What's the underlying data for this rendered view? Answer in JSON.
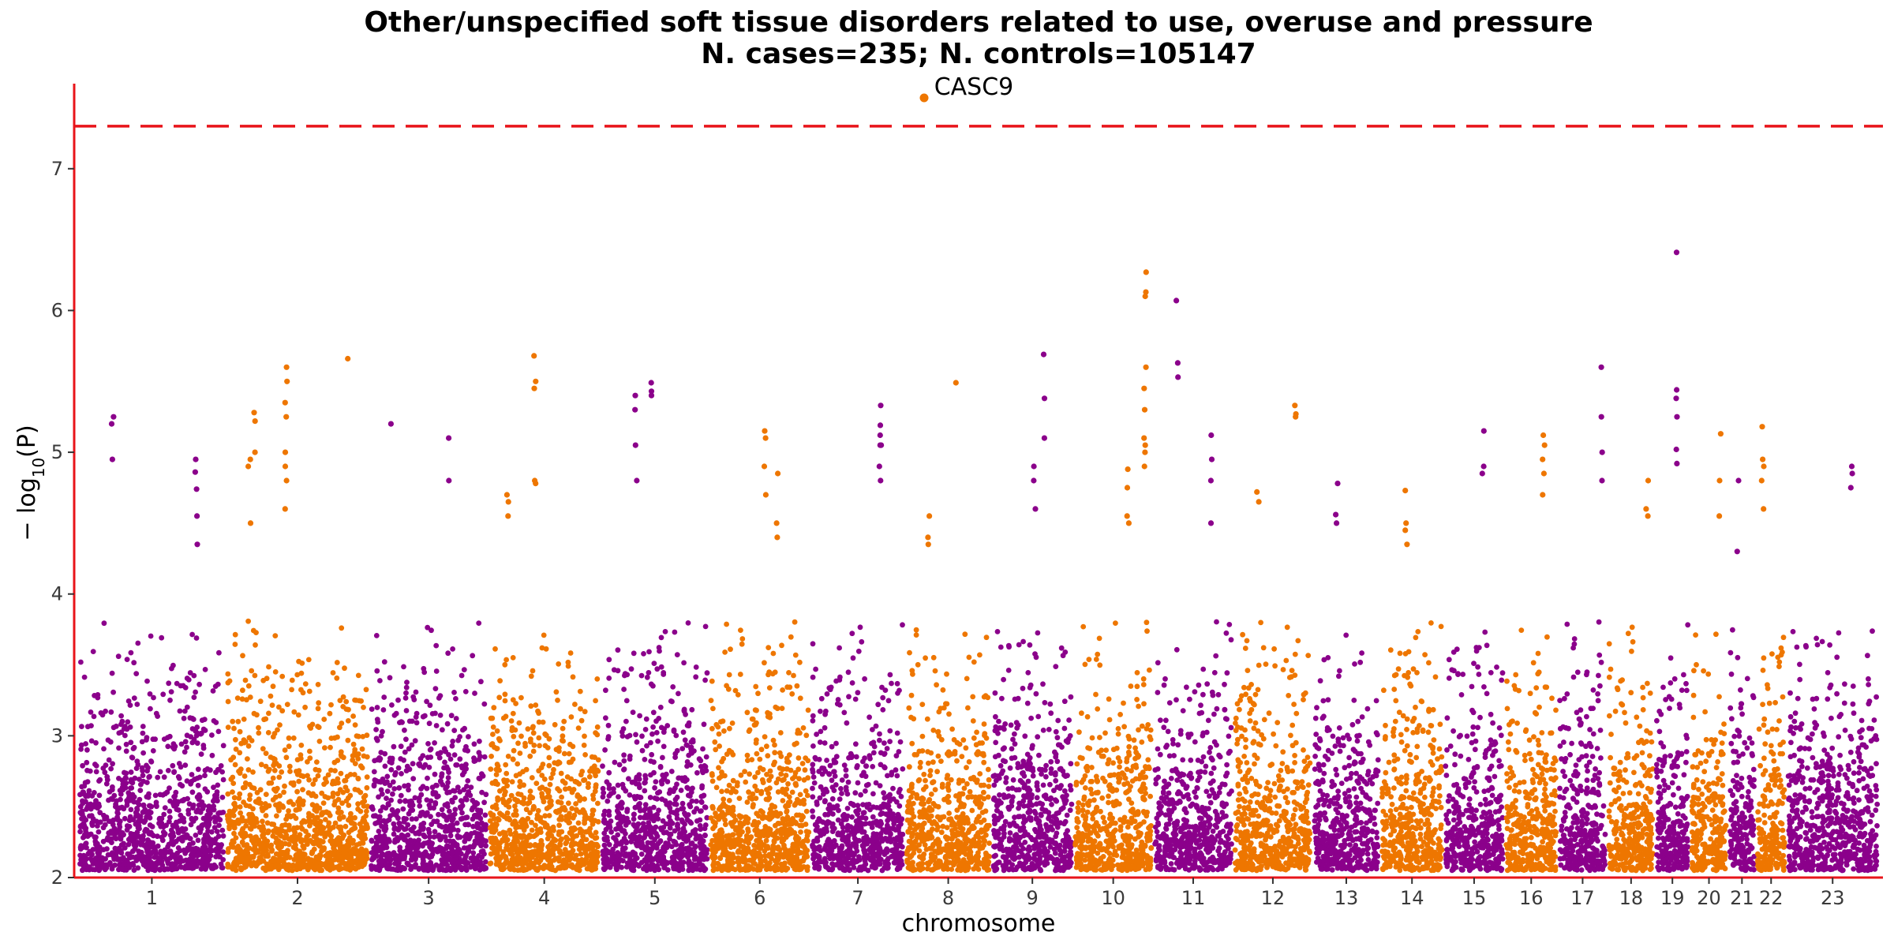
{
  "chart_data": {
    "type": "scatter",
    "subtype": "manhattan",
    "title": "Other/unspecified soft tissue disorders related to use, overuse and pressure",
    "subtitle": "N. cases=235; N. controls=105147",
    "xlabel": "chromosome",
    "ylabel_prefix": "− log",
    "ylabel_sub": "10",
    "ylabel_suffix": "(P)",
    "ylim": [
      2,
      7.6
    ],
    "yticks": [
      2,
      3,
      4,
      5,
      6,
      7
    ],
    "significance_line": 7.3,
    "grid": false,
    "colors": {
      "odd_chromosome": "#8B008B",
      "even_chromosome": "#EE7600",
      "axis": "#E8141A",
      "significance_line": "#E8141A"
    },
    "chromosomes": [
      {
        "label": "1",
        "start": 0,
        "end": 248
      },
      {
        "label": "2",
        "start": 248,
        "end": 490
      },
      {
        "label": "3",
        "start": 490,
        "end": 689
      },
      {
        "label": "4",
        "start": 689,
        "end": 879
      },
      {
        "label": "5",
        "start": 879,
        "end": 1061
      },
      {
        "label": "6",
        "start": 1061,
        "end": 1232
      },
      {
        "label": "7",
        "start": 1232,
        "end": 1391
      },
      {
        "label": "8",
        "start": 1391,
        "end": 1536
      },
      {
        "label": "9",
        "start": 1536,
        "end": 1674
      },
      {
        "label": "10",
        "start": 1674,
        "end": 1808
      },
      {
        "label": "11",
        "start": 1808,
        "end": 1943
      },
      {
        "label": "12",
        "start": 1943,
        "end": 2076
      },
      {
        "label": "13",
        "start": 2076,
        "end": 2190
      },
      {
        "label": "14",
        "start": 2190,
        "end": 2297
      },
      {
        "label": "15",
        "start": 2297,
        "end": 2399
      },
      {
        "label": "16",
        "start": 2399,
        "end": 2489
      },
      {
        "label": "17",
        "start": 2489,
        "end": 2572
      },
      {
        "label": "18",
        "start": 2572,
        "end": 2652
      },
      {
        "label": "19",
        "start": 2652,
        "end": 2711
      },
      {
        "label": "20",
        "start": 2711,
        "end": 2775
      },
      {
        "label": "21",
        "start": 2775,
        "end": 2822
      },
      {
        "label": "22",
        "start": 2822,
        "end": 2873
      },
      {
        "label": "23",
        "start": 2873,
        "end": 3029
      }
    ],
    "peaks": [
      {
        "chrom": "1",
        "values": [
          4.95,
          4.86,
          4.74,
          4.55,
          4.35
        ]
      },
      {
        "chrom": "1",
        "values": [
          5.25,
          5.2,
          4.95
        ]
      },
      {
        "chrom": "2",
        "values": [
          5.66
        ]
      },
      {
        "chrom": "2",
        "values": [
          5.6,
          5.5,
          5.35,
          5.25,
          5.0,
          4.9,
          4.8,
          4.6
        ]
      },
      {
        "chrom": "2",
        "values": [
          5.28,
          5.22,
          5.0
        ]
      },
      {
        "chrom": "2",
        "values": [
          4.95,
          4.9,
          4.5
        ]
      },
      {
        "chrom": "3",
        "values": [
          5.2
        ]
      },
      {
        "chrom": "3",
        "values": [
          5.1,
          4.8
        ]
      },
      {
        "chrom": "4",
        "values": [
          5.68
        ]
      },
      {
        "chrom": "4",
        "values": [
          5.5,
          5.45,
          4.8,
          4.78
        ]
      },
      {
        "chrom": "4",
        "values": [
          4.7,
          4.65,
          4.55
        ]
      },
      {
        "chrom": "5",
        "values": [
          5.49,
          5.43,
          5.4
        ]
      },
      {
        "chrom": "5",
        "values": [
          5.4,
          5.3,
          5.05,
          4.8
        ]
      },
      {
        "chrom": "6",
        "values": [
          4.85,
          4.5,
          4.4
        ]
      },
      {
        "chrom": "6",
        "values": [
          5.15,
          5.1,
          4.9,
          4.7
        ]
      },
      {
        "chrom": "7",
        "values": [
          5.33,
          5.05,
          4.8
        ]
      },
      {
        "chrom": "7",
        "values": [
          5.19,
          5.12,
          5.05,
          4.9
        ]
      },
      {
        "chrom": "8",
        "values": [
          7.5
        ]
      },
      {
        "chrom": "8",
        "values": [
          5.49
        ]
      },
      {
        "chrom": "8",
        "values": [
          4.55,
          4.4,
          4.35
        ]
      },
      {
        "chrom": "9",
        "values": [
          5.69,
          5.38,
          5.1
        ]
      },
      {
        "chrom": "9",
        "values": [
          4.9,
          4.8,
          4.6
        ]
      },
      {
        "chrom": "10",
        "values": [
          6.27,
          6.13,
          6.1,
          5.6,
          5.45,
          5.3,
          5.1,
          5.05,
          5.0,
          4.9
        ]
      },
      {
        "chrom": "10",
        "values": [
          4.88,
          4.75,
          4.55,
          4.5
        ]
      },
      {
        "chrom": "11",
        "values": [
          6.07,
          5.63,
          5.53
        ]
      },
      {
        "chrom": "11",
        "values": [
          5.12,
          4.95,
          4.8,
          4.5
        ]
      },
      {
        "chrom": "12",
        "values": [
          4.72,
          4.65
        ]
      },
      {
        "chrom": "12",
        "values": [
          5.33,
          5.27,
          5.25
        ]
      },
      {
        "chrom": "13",
        "values": [
          4.78,
          4.56,
          4.5
        ]
      },
      {
        "chrom": "14",
        "values": [
          4.73,
          4.5,
          4.45,
          4.35
        ]
      },
      {
        "chrom": "15",
        "values": [
          5.15,
          4.9,
          4.85
        ]
      },
      {
        "chrom": "16",
        "values": [
          5.12,
          5.05,
          4.95,
          4.85,
          4.7
        ]
      },
      {
        "chrom": "17",
        "values": [
          5.6,
          5.25,
          5.0,
          4.8
        ]
      },
      {
        "chrom": "18",
        "values": [
          4.8,
          4.6,
          4.55
        ]
      },
      {
        "chrom": "19",
        "values": [
          6.41,
          5.44,
          5.38,
          5.25,
          5.02,
          4.92
        ]
      },
      {
        "chrom": "20",
        "values": [
          5.13,
          4.8,
          4.55
        ]
      },
      {
        "chrom": "21",
        "values": [
          4.8,
          4.3
        ]
      },
      {
        "chrom": "22",
        "values": [
          5.18,
          4.95,
          4.9,
          4.8,
          4.6
        ]
      },
      {
        "chrom": "23",
        "values": [
          4.9,
          4.85,
          4.75
        ]
      }
    ],
    "annotations": [
      {
        "text": "CASC9",
        "chrom": "8",
        "y": 7.5
      }
    ]
  }
}
